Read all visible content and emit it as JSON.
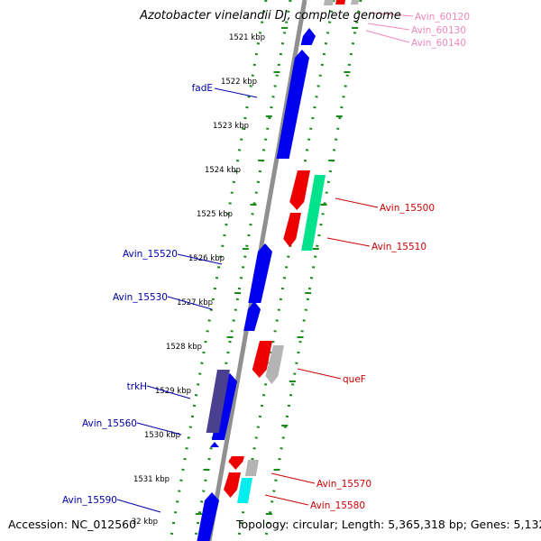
{
  "title": "Azotobacter vinelandii DJ, complete genome",
  "footer": {
    "accession": "Accession: NC_012560",
    "topology": "Topology: circular; Length: 5,365,318 bp; Genes: 5,132"
  },
  "colors": {
    "forward_gene": "#0000ee",
    "reverse_gene": "#ee0000",
    "pseudo_gene": "#4b3f8f",
    "rna_gene": "#00e28c",
    "cyan_gene": "#00eeee",
    "grey_gene": "#b4b4b4",
    "backbone": "#909090",
    "tick_dots": "#1a8a1a",
    "label_blue": "#0000aa",
    "label_red": "#cc0000",
    "label_pink": "#ee88bb"
  },
  "scale_labels": [
    "1521 kbp",
    "1522 kbp",
    "1523 kbp",
    "1524 kbp",
    "1525 kbp",
    "1526 kbp",
    "1527 kbp",
    "1528 kbp",
    "1529 kbp",
    "1530 kbp",
    "1531 kbp",
    "32 kbp"
  ],
  "gene_labels": {
    "left": [
      "fadE",
      "Avin_15520",
      "Avin_15530",
      "trkH",
      "Avin_15560",
      "Avin_15590"
    ],
    "right": [
      "Avin_15500",
      "Avin_15510",
      "queF",
      "Avin_15570",
      "Avin_15580"
    ],
    "top_right": [
      "Avin_60120",
      "Avin_60130",
      "Avin_60140"
    ]
  }
}
